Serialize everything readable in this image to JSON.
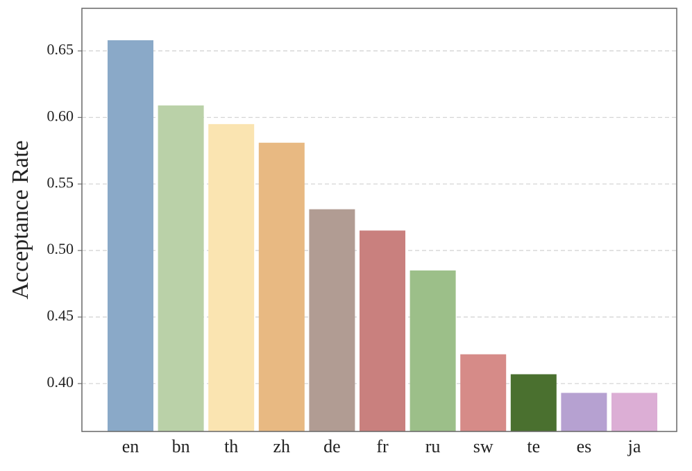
{
  "chart_data": {
    "type": "bar",
    "y_label": "Acceptance Rate",
    "categories": [
      "en",
      "bn",
      "th",
      "zh",
      "de",
      "fr",
      "ru",
      "sw",
      "te",
      "es",
      "ja"
    ],
    "values": [
      0.658,
      0.609,
      0.595,
      0.581,
      0.531,
      0.515,
      0.485,
      0.422,
      0.407,
      0.393,
      0.393
    ],
    "colors": [
      "#8aa9c8",
      "#bad1a8",
      "#fae4b1",
      "#e8b982",
      "#b19c93",
      "#c9807e",
      "#9cbf89",
      "#d68b88",
      "#4a702f",
      "#b6a1d1",
      "#dcaed5"
    ],
    "ylim": [
      0.364,
      0.682
    ],
    "yticks": [
      {
        "value": 0.4,
        "label": "0.40"
      },
      {
        "value": 0.45,
        "label": "0.45"
      },
      {
        "value": 0.5,
        "label": "0.50"
      },
      {
        "value": 0.55,
        "label": "0.55"
      },
      {
        "value": 0.6,
        "label": "0.60"
      },
      {
        "value": 0.65,
        "label": "0.65"
      }
    ],
    "grid": true
  }
}
